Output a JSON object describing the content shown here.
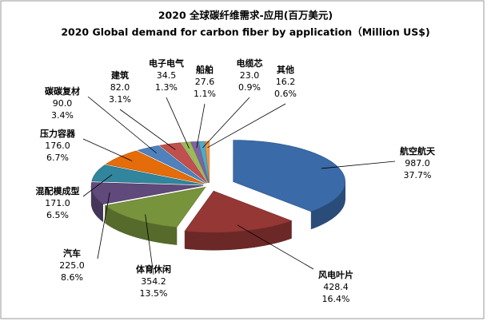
{
  "chart_data": {
    "type": "pie",
    "title": "2020 全球碳纤维需求-应用(百万美元)",
    "subtitle": "2020 Global demand for carbon fiber by application（Million US$)",
    "categories": [
      "航空航天",
      "风电叶片",
      "体育休闲",
      "汽车",
      "混配模成型",
      "压力容器",
      "碳碳复材",
      "建筑",
      "电子电气",
      "船舶",
      "电缆芯",
      "其他"
    ],
    "values": [
      987.0,
      428.4,
      354.2,
      225.0,
      171.0,
      176.0,
      90.0,
      82.0,
      34.5,
      27.6,
      23.0,
      16.2
    ],
    "value_labels": [
      "987.0",
      "428.4",
      "354.2",
      "225.0",
      "171.0",
      "176.0",
      "90.0",
      "82.0",
      "34.5",
      "27.6",
      "23.0",
      "16.2"
    ],
    "percentages": [
      37.7,
      16.4,
      13.5,
      8.6,
      6.5,
      6.7,
      3.4,
      3.1,
      1.3,
      1.1,
      0.9,
      0.6
    ],
    "percentage_labels": [
      "37.7%",
      "16.4%",
      "13.5%",
      "8.6%",
      "6.5%",
      "6.7%",
      "3.4%",
      "3.1%",
      "1.3%",
      "1.1%",
      "0.9%",
      "0.6%"
    ],
    "colors": [
      "#3a6aa8",
      "#953735",
      "#77933c",
      "#604a7b",
      "#31859c",
      "#e46c0a",
      "#4f81bd",
      "#c0504d",
      "#9bbb59",
      "#8064a2",
      "#4bacc6",
      "#f79646"
    ]
  }
}
